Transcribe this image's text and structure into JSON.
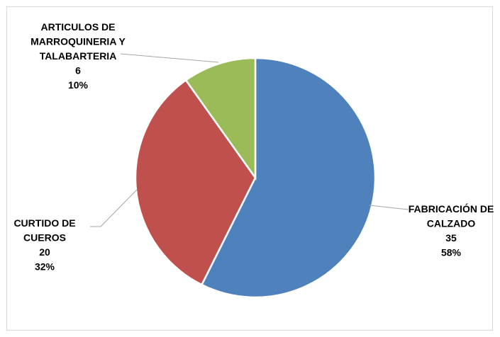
{
  "chart_data": {
    "type": "pie",
    "title": "",
    "slices": [
      {
        "name_lines": [
          "FABRICACIÓN DE",
          "CALZADO"
        ],
        "value": 35,
        "percent_label": "58%",
        "color": "#4f81bd"
      },
      {
        "name_lines": [
          "CURTIDO DE",
          "CUEROS"
        ],
        "value": 20,
        "percent_label": "32%",
        "color": "#c0504d"
      },
      {
        "name_lines": [
          "ARTICULOS DE",
          "MARROQUINERIA Y",
          "TALABARTERIA"
        ],
        "value": 6,
        "percent_label": "10%",
        "color": "#9bbb59"
      }
    ],
    "start_angle": "12 o'clock",
    "direction": "clockwise",
    "legend": "none",
    "data_labels": "outside with leader lines"
  }
}
